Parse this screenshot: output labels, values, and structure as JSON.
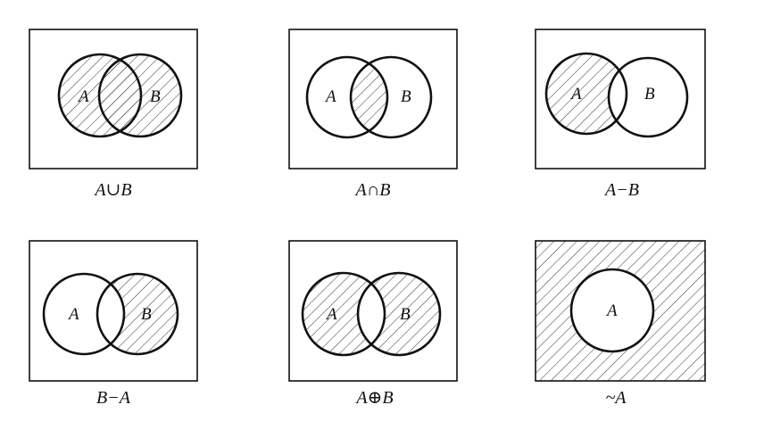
{
  "panels": [
    {
      "caption": "A∪B",
      "labels": [
        "A",
        "B"
      ],
      "shade": "union"
    },
    {
      "caption": "A∩B",
      "labels": [
        "A",
        "B"
      ],
      "shade": "intersection"
    },
    {
      "caption": "A−B",
      "labels": [
        "A",
        "B"
      ],
      "shade": "a-minus-b"
    },
    {
      "caption": "B−A",
      "labels": [
        "A",
        "B"
      ],
      "shade": "b-minus-a"
    },
    {
      "caption": "A⊕B",
      "labels": [
        "A",
        "B"
      ],
      "shade": "symmetric-difference"
    },
    {
      "caption": "~A",
      "labels": [
        "A"
      ],
      "shade": "complement"
    }
  ],
  "colors": {
    "line": "#111111",
    "hatch": "#333333",
    "background": "#ffffff"
  }
}
